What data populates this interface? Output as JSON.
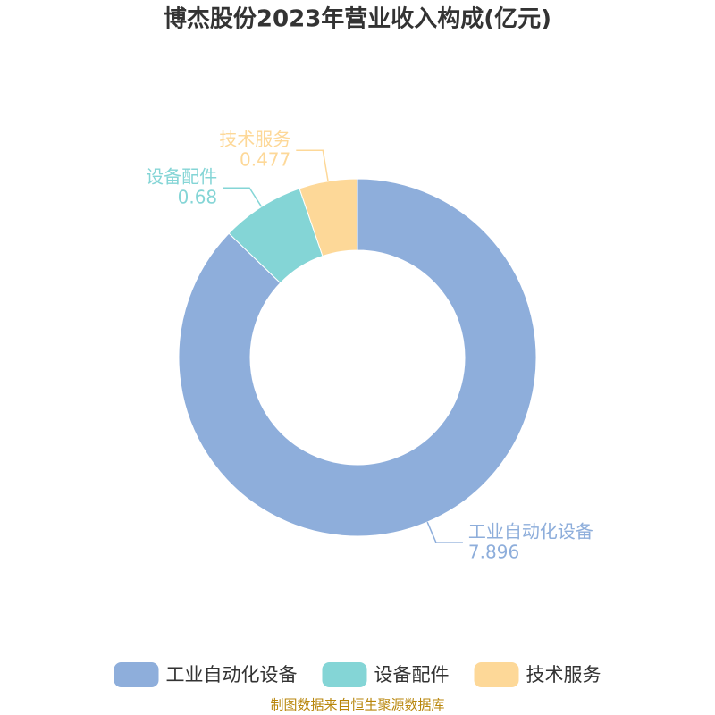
{
  "chart_data": {
    "type": "donut",
    "title": "博杰股份2023年营业收入构成(亿元)",
    "categories": [
      "工业自动化设备",
      "设备配件",
      "技术服务"
    ],
    "values": [
      7.896,
      0.68,
      0.477
    ],
    "colors": [
      "#8eaedb",
      "#84d5d6",
      "#fdd898"
    ],
    "legend": "bottom",
    "source": "制图数据来自恒生聚源数据库"
  }
}
